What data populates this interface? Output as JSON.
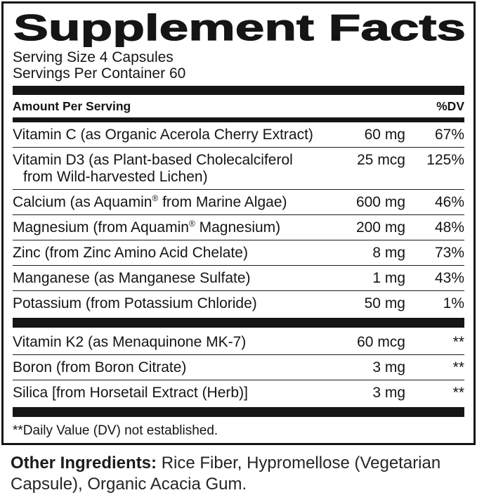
{
  "label": {
    "title": "Supplement Facts",
    "serving_size": "Serving Size 4 Capsules",
    "servings_per_container": "Servings Per Container 60",
    "column_header": {
      "left": "Amount Per Serving",
      "right": "%DV"
    },
    "text_color": "#151515",
    "background_color": "#ffffff"
  },
  "rows": [
    {
      "name": "Vitamin C (as Organic Acerola Cherry Extract)",
      "amount": "60 mg",
      "dv": "67%"
    },
    {
      "name": "Vitamin D3 (as Plant-based Cholecalciferol",
      "name_line2": "from Wild-harvested Lichen)",
      "amount": "25 mcg",
      "dv": "125%"
    },
    {
      "name": "Calcium (as Aquamin",
      "reg": "®",
      "name_cont": " from Marine Algae)",
      "amount": "600 mg",
      "dv": "46%"
    },
    {
      "name": "Magnesium (from Aquamin",
      "reg": "®",
      "name_cont": " Magnesium)",
      "amount": "200 mg",
      "dv": "48%"
    },
    {
      "name": "Zinc (from Zinc Amino Acid Chelate)",
      "amount": "8 mg",
      "dv": "73%"
    },
    {
      "name": "Manganese (as Manganese Sulfate)",
      "amount": "1 mg",
      "dv": "43%"
    },
    {
      "name": "Potassium (from Potassium Chloride)",
      "amount": "50 mg",
      "dv": "1%"
    },
    {
      "name": "Vitamin K2 (as Menaquinone MK-7)",
      "amount": "60 mcg",
      "dv": "**"
    },
    {
      "name": "Boron (from Boron Citrate)",
      "amount": "3 mg",
      "dv": "**"
    },
    {
      "name": "Silica [from Horsetail Extract (Herb)]",
      "amount": "3 mg",
      "dv": "**"
    }
  ],
  "footnote": "**Daily Value (DV) not established.",
  "other_ingredients": {
    "label": "Other Ingredients:",
    "text": " Rice Fiber, Hypromellose (Vegetarian Capsule), Organic Acacia Gum."
  }
}
